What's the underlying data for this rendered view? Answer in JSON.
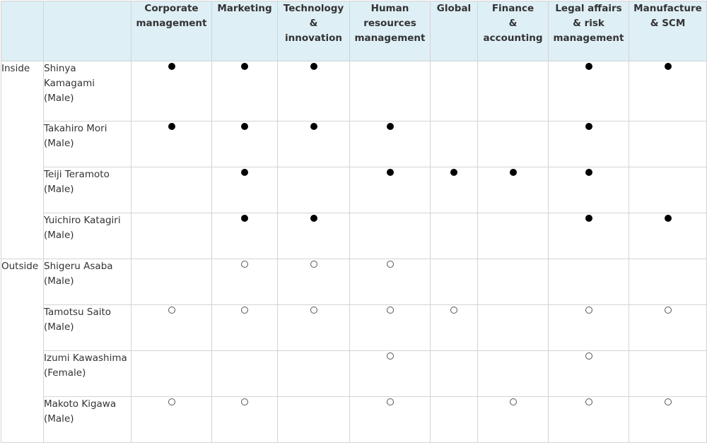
{
  "columns": [
    "Corporate management",
    "Marketing",
    "Technology & innovation",
    "Human resources management",
    "Global",
    "Finance & accounting",
    "Legal affairs & risk management",
    "Manufacture & SCM"
  ],
  "columns_lines": [
    [
      "Corporate",
      "management"
    ],
    [
      "Marketing"
    ],
    [
      "Technology",
      "&",
      "innovation"
    ],
    [
      "Human",
      "resources",
      "management"
    ],
    [
      "Global"
    ],
    [
      "Finance",
      "&",
      "accounting"
    ],
    [
      "Legal affairs",
      "& risk",
      "management"
    ],
    [
      "Manufacture",
      "& SCM"
    ]
  ],
  "groups": {
    "inside": "Inside",
    "outside": "Outside"
  },
  "legend": {
    "filled": "●",
    "open": "○"
  },
  "members": [
    {
      "group": "inside",
      "name": "Shinya Kamagami",
      "name_lines": [
        "Shinya",
        "Kamagami"
      ],
      "gender": "(Male)",
      "marks": [
        "filled",
        "filled",
        "filled",
        "",
        "",
        "",
        "filled",
        "filled"
      ]
    },
    {
      "group": "inside",
      "name": "Takahiro Mori",
      "name_lines": [
        "Takahiro Mori"
      ],
      "gender": "(Male)",
      "marks": [
        "filled",
        "filled",
        "filled",
        "filled",
        "",
        "",
        "filled",
        ""
      ]
    },
    {
      "group": "inside",
      "name": "Teiji Teramoto",
      "name_lines": [
        "Teiji Teramoto"
      ],
      "gender": "(Male)",
      "marks": [
        "",
        "filled",
        "",
        "filled",
        "filled",
        "filled",
        "filled",
        ""
      ]
    },
    {
      "group": "inside",
      "name": "Yuichiro Katagiri",
      "name_lines": [
        "Yuichiro Katagiri"
      ],
      "gender": "(Male)",
      "marks": [
        "",
        "filled",
        "filled",
        "",
        "",
        "",
        "filled",
        "filled"
      ]
    },
    {
      "group": "outside",
      "name": "Shigeru Asaba",
      "name_lines": [
        "Shigeru Asaba"
      ],
      "gender": "(Male)",
      "marks": [
        "",
        "open",
        "open",
        "open",
        "",
        "",
        "",
        ""
      ]
    },
    {
      "group": "outside",
      "name": "Tamotsu Saito",
      "name_lines": [
        "Tamotsu Saito"
      ],
      "gender": "(Male)",
      "marks": [
        "open",
        "open",
        "open",
        "open",
        "open",
        "",
        "open",
        "open"
      ]
    },
    {
      "group": "outside",
      "name": "Izumi Kawashima",
      "name_lines": [
        "Izumi Kawashima"
      ],
      "gender": "(Female)",
      "marks": [
        "",
        "",
        "",
        "open",
        "",
        "",
        "open",
        ""
      ]
    },
    {
      "group": "outside",
      "name": "Makoto Kigawa",
      "name_lines": [
        "Makoto Kigawa"
      ],
      "gender": "(Male)",
      "marks": [
        "open",
        "open",
        "",
        "open",
        "",
        "open",
        "open",
        "open"
      ]
    }
  ]
}
